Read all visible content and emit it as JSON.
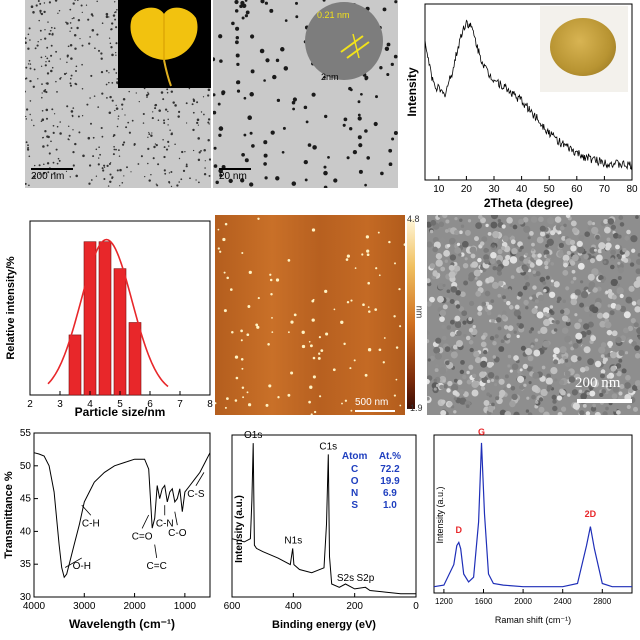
{
  "panels": {
    "tem1": {
      "scale_bar": "200 nm"
    },
    "tem2": {
      "scale_bar": "20 nm",
      "lattice": "0.21 nm",
      "inset_scale": "2nm"
    },
    "afm": {
      "scale_bar": "500 nm",
      "colorbar_max": "4.8",
      "colorbar_min": "-1.9",
      "colorbar_unit": "nm"
    },
    "sem": {
      "scale_bar": "200 nm"
    }
  },
  "colors": {
    "bar": "#e8272a",
    "fit": "#e8272a",
    "raman": "#1f2fb8",
    "xps_table": "#1f3fbf",
    "raman_labels": "#e8272a",
    "lattice": "#f2e21a"
  },
  "chart_data": [
    {
      "type": "line",
      "xlabel": "2Theta (degree)",
      "ylabel": "Intensity",
      "xlim": [
        5,
        80
      ],
      "x_ticks": [
        "10",
        "20",
        "30",
        "40",
        "50",
        "60",
        "70",
        "80"
      ],
      "series": [
        {
          "x": [
            5,
            8,
            12,
            15,
            18,
            20,
            22,
            25,
            28,
            32,
            36,
            40,
            45,
            50,
            55,
            60,
            65,
            70,
            75,
            80
          ],
          "y": [
            0.78,
            0.55,
            0.48,
            0.62,
            0.82,
            0.9,
            0.86,
            0.7,
            0.6,
            0.55,
            0.5,
            0.45,
            0.36,
            0.27,
            0.2,
            0.15,
            0.12,
            0.1,
            0.09,
            0.08
          ]
        }
      ]
    },
    {
      "type": "bar",
      "xlabel": "Particle size/nm",
      "ylabel": "Relative intensity/%",
      "xlim": [
        2,
        8
      ],
      "x_ticks": [
        "2",
        "3",
        "4",
        "5",
        "6",
        "7",
        "8"
      ],
      "categories": [
        "3.5",
        "4",
        "4.5",
        "5",
        "5.5"
      ],
      "values": [
        14.5,
        37,
        37,
        30.5,
        17.5
      ],
      "ylim": [
        0,
        42
      ],
      "fit": {
        "type": "gaussian",
        "mean": 4.55,
        "sigma": 0.85,
        "peak": 37.5
      }
    },
    {
      "type": "line",
      "xlabel": "Wavelength (cm⁻¹)",
      "ylabel": "Transmittance %",
      "xlim": [
        4000,
        500
      ],
      "ylim": [
        30,
        55
      ],
      "x_ticks": [
        "4000",
        "3000",
        "2000",
        "1000"
      ],
      "y_ticks": [
        "30",
        "35",
        "40",
        "45",
        "50",
        "55"
      ],
      "annotations": [
        "O-H",
        "C-H",
        "C=O",
        "C=C",
        "C-N",
        "C-O",
        "C-S"
      ],
      "series": [
        {
          "x": [
            4000,
            3900,
            3800,
            3700,
            3600,
            3500,
            3450,
            3400,
            3350,
            3300,
            3200,
            3100,
            3000,
            2900,
            2800,
            2600,
            2400,
            2200,
            2000,
            1800,
            1720,
            1650,
            1600,
            1550,
            1500,
            1450,
            1400,
            1350,
            1300,
            1250,
            1200,
            1150,
            1100,
            1050,
            1000,
            900,
            800,
            700,
            600,
            500
          ],
          "y": [
            52,
            51.8,
            51.5,
            50,
            46,
            38,
            34.5,
            33,
            33.5,
            35,
            38,
            41,
            44.5,
            46,
            47.5,
            49,
            50,
            50.5,
            51,
            51,
            49.5,
            40.5,
            42,
            47,
            45,
            46.5,
            47,
            44.5,
            46,
            46.5,
            44.5,
            45,
            46.5,
            43,
            46,
            47,
            48,
            49,
            50.5,
            52
          ]
        }
      ]
    },
    {
      "type": "line",
      "xlabel": "Binding energy (eV)",
      "ylabel": "Intensity (a.u.)",
      "xlim": [
        600,
        0
      ],
      "x_ticks": [
        "600",
        "400",
        "200",
        "0"
      ],
      "peak_labels": [
        "O1s",
        "N1s",
        "C1s",
        "S2s",
        "S2p"
      ],
      "table": {
        "headers": [
          "Atom",
          "At.%"
        ],
        "rows": [
          [
            "C",
            "72.2"
          ],
          [
            "O",
            "19.9"
          ],
          [
            "N",
            "6.9"
          ],
          [
            "S",
            "1.0"
          ]
        ]
      },
      "series": [
        {
          "x": [
            600,
            580,
            560,
            540,
            535,
            531,
            527,
            520,
            500,
            450,
            410,
            402,
            398,
            380,
            340,
            300,
            292,
            286,
            282,
            275,
            250,
            230,
            200,
            165,
            150,
            100,
            50,
            0
          ],
          "y": [
            0.36,
            0.35,
            0.34,
            0.36,
            0.6,
            0.95,
            0.32,
            0.3,
            0.28,
            0.24,
            0.2,
            0.3,
            0.2,
            0.17,
            0.15,
            0.18,
            0.45,
            0.88,
            0.25,
            0.08,
            0.06,
            0.08,
            0.05,
            0.06,
            0.04,
            0.03,
            0.02,
            0.02
          ]
        }
      ]
    },
    {
      "type": "line",
      "xlabel": "Raman shift (cm⁻¹)",
      "ylabel": "Intensity (a.u.)",
      "xlim": [
        1100,
        3100
      ],
      "x_ticks": [
        "1200",
        "1600",
        "2000",
        "2400",
        "2800"
      ],
      "peak_labels": [
        "D",
        "G",
        "2D"
      ],
      "series": [
        {
          "x": [
            1100,
            1200,
            1300,
            1330,
            1350,
            1370,
            1400,
            1450,
            1500,
            1550,
            1580,
            1610,
            1650,
            1700,
            1800,
            2000,
            2200,
            2400,
            2550,
            2640,
            2680,
            2720,
            2800,
            2900,
            3000,
            3100
          ],
          "y": [
            0.04,
            0.05,
            0.18,
            0.3,
            0.32,
            0.28,
            0.12,
            0.07,
            0.1,
            0.45,
            0.95,
            0.5,
            0.12,
            0.06,
            0.05,
            0.04,
            0.04,
            0.04,
            0.06,
            0.3,
            0.42,
            0.28,
            0.06,
            0.04,
            0.04,
            0.04
          ]
        }
      ]
    }
  ]
}
